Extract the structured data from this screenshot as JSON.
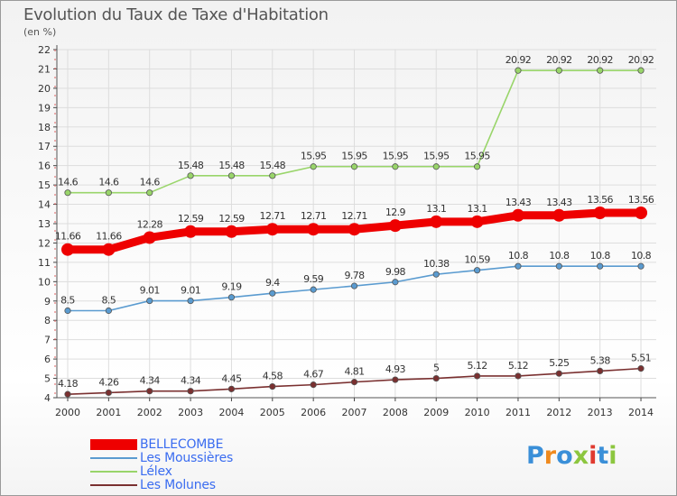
{
  "header": {
    "title": "Evolution du Taux de Taxe d'Habitation",
    "unit": "(en %)"
  },
  "logo": {
    "text": "Proxiti",
    "letter_colors": [
      "#3a8fd8",
      "#ef8a1e",
      "#3a8fd8",
      "#8cc63f",
      "#e03a2f",
      "#3a8fd8",
      "#8cc63f"
    ]
  },
  "chart_data": {
    "type": "line",
    "title": "Evolution du Taux de Taxe d'Habitation",
    "ylabel": "(en %)",
    "xlabel": "",
    "x": [
      "2000",
      "2001",
      "2002",
      "2003",
      "2004",
      "2005",
      "2006",
      "2007",
      "2008",
      "2009",
      "2010",
      "2011",
      "2012",
      "2013",
      "2014"
    ],
    "ylim": [
      4,
      22
    ],
    "yticks": [
      4,
      5,
      6,
      7,
      8,
      9,
      10,
      11,
      12,
      13,
      14,
      15,
      16,
      17,
      18,
      19,
      20,
      21,
      22
    ],
    "grid": true,
    "legend_position": "bottom-left",
    "series": [
      {
        "name": "BELLECOMBE",
        "color": "#ee0000",
        "values": [
          11.66,
          11.66,
          12.28,
          12.59,
          12.59,
          12.71,
          12.71,
          12.71,
          12.9,
          13.1,
          13.1,
          13.43,
          13.43,
          13.56,
          13.56
        ],
        "labels": [
          "11.66",
          "11.66",
          "12.28",
          "12.59",
          "12.59",
          "12.71",
          "12.71",
          "12.71",
          "12.9",
          "13.1",
          "13.1",
          "13.43",
          "13.43",
          "13.56",
          "13.56"
        ]
      },
      {
        "name": "Les Moussières",
        "color": "#5a9bd0",
        "values": [
          8.5,
          8.5,
          9.01,
          9.01,
          9.19,
          9.4,
          9.59,
          9.78,
          9.98,
          10.38,
          10.59,
          10.8,
          10.8,
          10.8,
          10.8
        ],
        "labels": [
          "8.5",
          "8.5",
          "9.01",
          "9.01",
          "9.19",
          "9.4",
          "9.59",
          "9.78",
          "9.98",
          "10.38",
          "10.59",
          "10.8",
          "10.8",
          "10.8",
          "10.8"
        ]
      },
      {
        "name": "Lélex",
        "color": "#99d56a",
        "values": [
          14.6,
          14.6,
          14.6,
          15.48,
          15.48,
          15.48,
          15.95,
          15.95,
          15.95,
          15.95,
          15.95,
          20.92,
          20.92,
          20.92,
          20.92
        ],
        "labels": [
          "14.6",
          "14.6",
          "14.6",
          "15.48",
          "15.48",
          "15.48",
          "15.95",
          "15.95",
          "15.95",
          "15.95",
          "15.95",
          "20.92",
          "20.92",
          "20.92",
          "20.92"
        ]
      },
      {
        "name": "Les Molunes",
        "color": "#7a3030",
        "values": [
          4.18,
          4.26,
          4.34,
          4.34,
          4.45,
          4.58,
          4.67,
          4.81,
          4.93,
          5,
          5.12,
          5.12,
          5.25,
          5.38,
          5.51
        ],
        "labels": [
          "4.18",
          "4.26",
          "4.34",
          "4.34",
          "4.45",
          "4.58",
          "4.67",
          "4.81",
          "4.93",
          "5",
          "5.12",
          "5.12",
          "5.25",
          "5.38",
          "5.51"
        ]
      }
    ]
  }
}
